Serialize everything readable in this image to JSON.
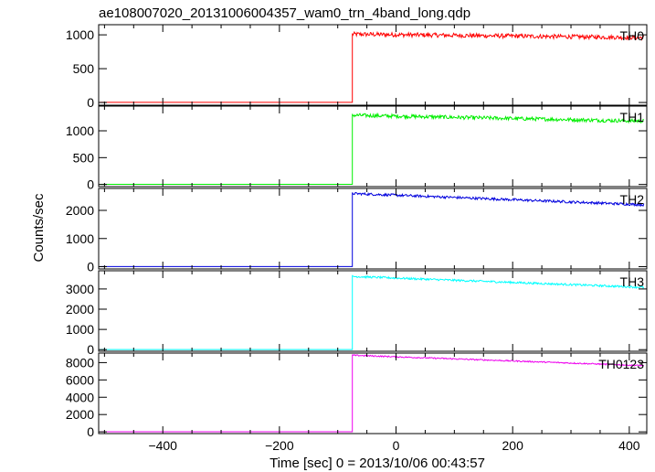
{
  "chart_data": {
    "type": "line",
    "title": "ae108007020_20131006004357_wam0_trn_4band_long.qdp",
    "xlabel": "Time [sec] 0 = 2013/10/06 00:43:57",
    "ylabel": "Counts/sec",
    "xlim": [
      -510,
      430
    ],
    "xticks": [
      -400,
      -200,
      0,
      200,
      400
    ],
    "xtick_labels": [
      "−400",
      "−200",
      "0",
      "200",
      "400"
    ],
    "trigger_time": -75,
    "end_time": 425,
    "grid": false,
    "legend": "none",
    "panels": [
      {
        "name": "TH0",
        "color": "#ff0000",
        "ylim": [
          -40,
          1150
        ],
        "yticks": [
          0,
          500,
          1000
        ],
        "pre_level": 2,
        "start_level": 1010,
        "end_level": 960,
        "noise": 32
      },
      {
        "name": "TH1",
        "color": "#00ee00",
        "ylim": [
          -40,
          1460
        ],
        "yticks": [
          0,
          500,
          1000
        ],
        "pre_level": 3,
        "start_level": 1290,
        "end_level": 1180,
        "noise": 35
      },
      {
        "name": "TH2",
        "color": "#0000dd",
        "ylim": [
          -80,
          2780
        ],
        "yticks": [
          0,
          1000,
          2000
        ],
        "pre_level": 5,
        "start_level": 2600,
        "end_level": 2200,
        "noise": 45
      },
      {
        "name": "TH3",
        "color": "#00ffff",
        "ylim": [
          -80,
          3900
        ],
        "yticks": [
          0,
          1000,
          2000,
          3000
        ],
        "pre_level": 5,
        "start_level": 3620,
        "end_level": 3080,
        "noise": 50
      },
      {
        "name": "TH0123",
        "color": "#ee00ee",
        "ylim": [
          -200,
          9100
        ],
        "yticks": [
          0,
          2000,
          4000,
          6000,
          8000
        ],
        "pre_level": 15,
        "start_level": 8850,
        "end_level": 7650,
        "noise": 75
      }
    ]
  }
}
